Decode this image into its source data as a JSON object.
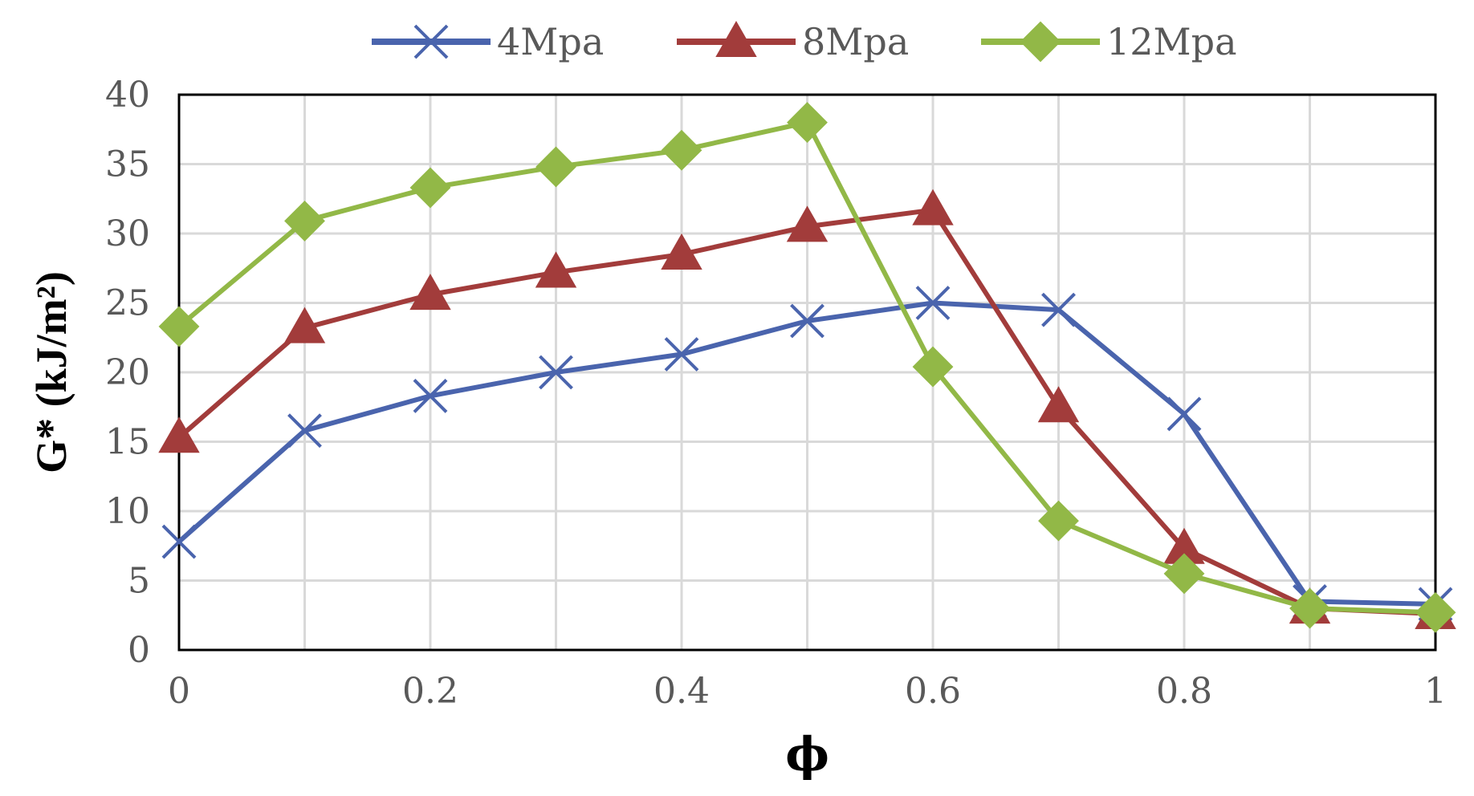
{
  "chart_data": {
    "type": "line",
    "xlabel": "ϕ",
    "ylabel": "G* (kJ/m²)",
    "xlim": [
      0,
      1
    ],
    "ylim": [
      0,
      40
    ],
    "x_ticks": [
      0,
      0.2,
      0.4,
      0.6,
      0.8,
      1
    ],
    "x_tick_labels": [
      "0",
      "0.2",
      "0.4",
      "0.6",
      "0.8",
      "1"
    ],
    "y_ticks": [
      0,
      5,
      10,
      15,
      20,
      25,
      30,
      35,
      40
    ],
    "y_tick_labels": [
      "0",
      "5",
      "10",
      "15",
      "20",
      "25",
      "30",
      "35",
      "40"
    ],
    "grid": true,
    "legend_position": "top-center",
    "x": [
      0,
      0.1,
      0.2,
      0.3,
      0.4,
      0.5,
      0.6,
      0.7,
      0.8,
      0.9,
      1
    ],
    "series": [
      {
        "name": "4Mpa",
        "marker": "x",
        "color": "#4a64ad",
        "values": [
          7.8,
          15.8,
          18.3,
          20.0,
          21.3,
          23.7,
          25.0,
          24.5,
          17.0,
          3.5,
          3.3
        ]
      },
      {
        "name": "8Mpa",
        "marker": "triangle",
        "color": "#a23c3b",
        "values": [
          15.3,
          23.2,
          25.6,
          27.2,
          28.5,
          30.5,
          31.7,
          17.5,
          7.3,
          3.0,
          2.6
        ]
      },
      {
        "name": "12Mpa",
        "marker": "diamond",
        "color": "#92b847",
        "values": [
          23.3,
          30.9,
          33.3,
          34.8,
          36.0,
          38.0,
          20.4,
          9.3,
          5.5,
          3.0,
          2.7
        ]
      }
    ]
  }
}
